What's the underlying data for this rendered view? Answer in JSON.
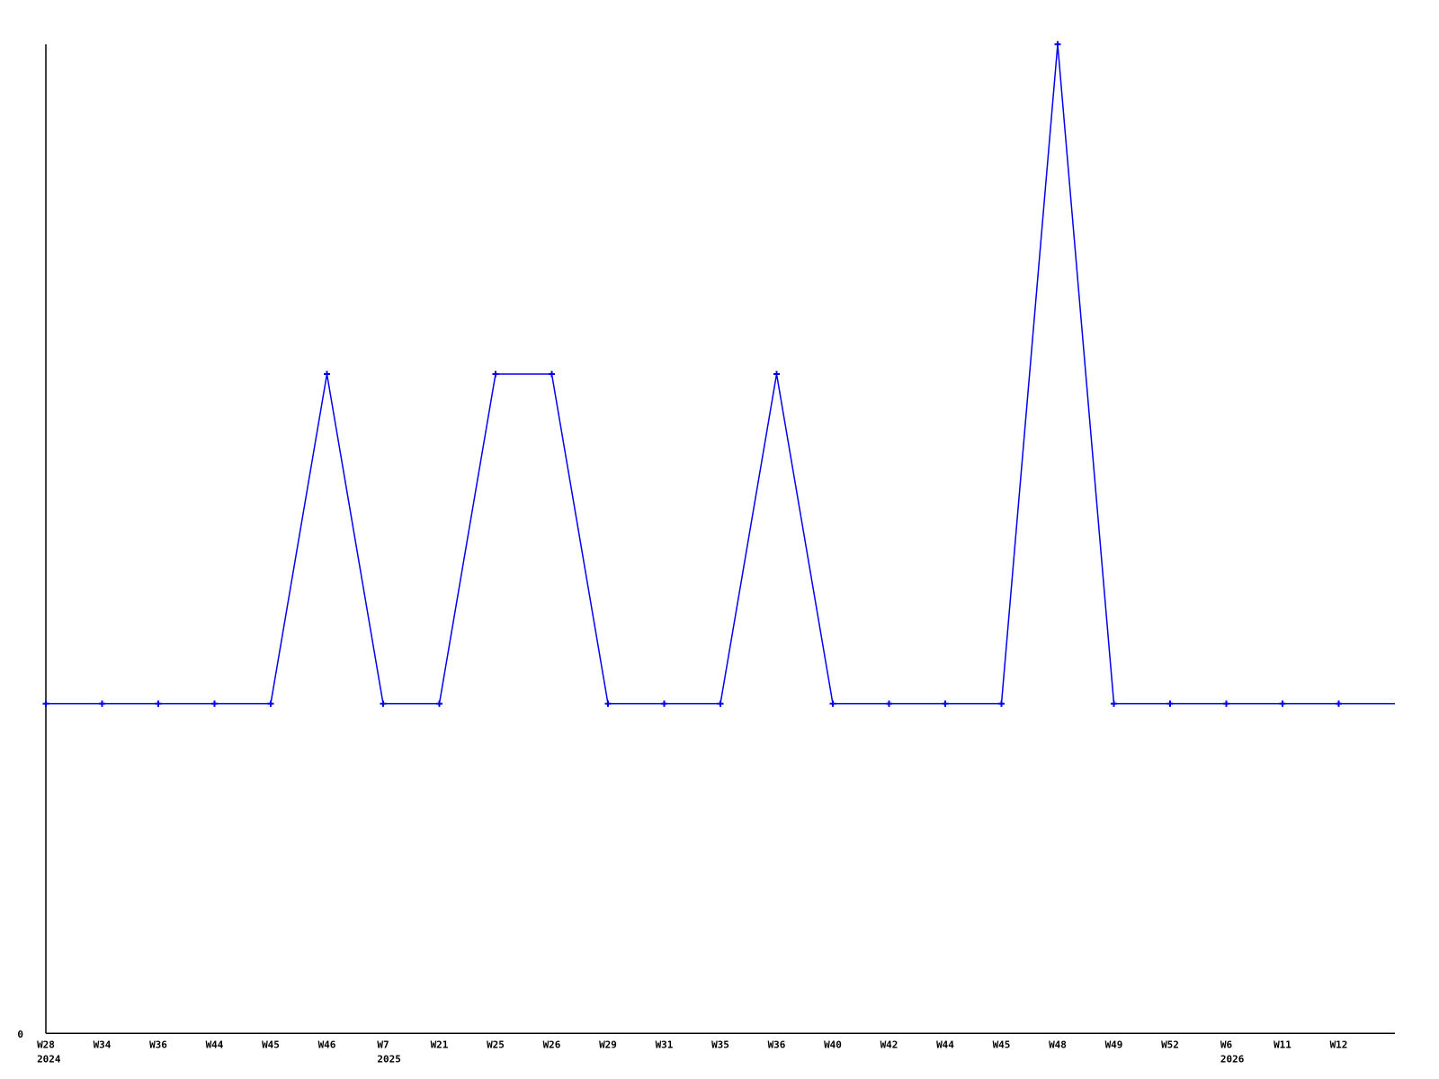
{
  "page": {
    "background": "#ffffff"
  },
  "chart_data": {
    "type": "line",
    "title": "",
    "xlabel": "",
    "ylabel": "",
    "ylim": [
      0,
      3
    ],
    "grid": false,
    "legend": false,
    "line_color": "#0000ee",
    "marker_color": "#0000ee",
    "axis_color": "#000000",
    "marker_style": "plus",
    "y_tick_labels": [
      {
        "value": 0,
        "label": "0"
      }
    ],
    "points": [
      {
        "week": "W28",
        "year": "2024",
        "value": 1
      },
      {
        "week": "W34",
        "value": 1
      },
      {
        "week": "W36",
        "value": 1
      },
      {
        "week": "W44",
        "value": 1
      },
      {
        "week": "W45",
        "value": 1
      },
      {
        "week": "W46",
        "value": 2
      },
      {
        "week": "W7",
        "year": "2025",
        "value": 1
      },
      {
        "week": "W21",
        "value": 1
      },
      {
        "week": "W25",
        "value": 2
      },
      {
        "week": "W26",
        "value": 2
      },
      {
        "week": "W29",
        "value": 1
      },
      {
        "week": "W31",
        "value": 1
      },
      {
        "week": "W35",
        "value": 1
      },
      {
        "week": "W36",
        "value": 2
      },
      {
        "week": "W40",
        "value": 1
      },
      {
        "week": "W42",
        "value": 1
      },
      {
        "week": "W44",
        "value": 1
      },
      {
        "week": "W45",
        "value": 1
      },
      {
        "week": "W48",
        "value": 3
      },
      {
        "week": "W49",
        "value": 1
      },
      {
        "week": "W52",
        "value": 1
      },
      {
        "week": "W6",
        "year": "2026",
        "value": 1
      },
      {
        "week": "W11",
        "value": 1
      },
      {
        "week": "W12",
        "value": 1
      }
    ],
    "trailing_segment": {
      "value": 1,
      "extends_to_right_edge": true,
      "has_marker": false
    }
  }
}
